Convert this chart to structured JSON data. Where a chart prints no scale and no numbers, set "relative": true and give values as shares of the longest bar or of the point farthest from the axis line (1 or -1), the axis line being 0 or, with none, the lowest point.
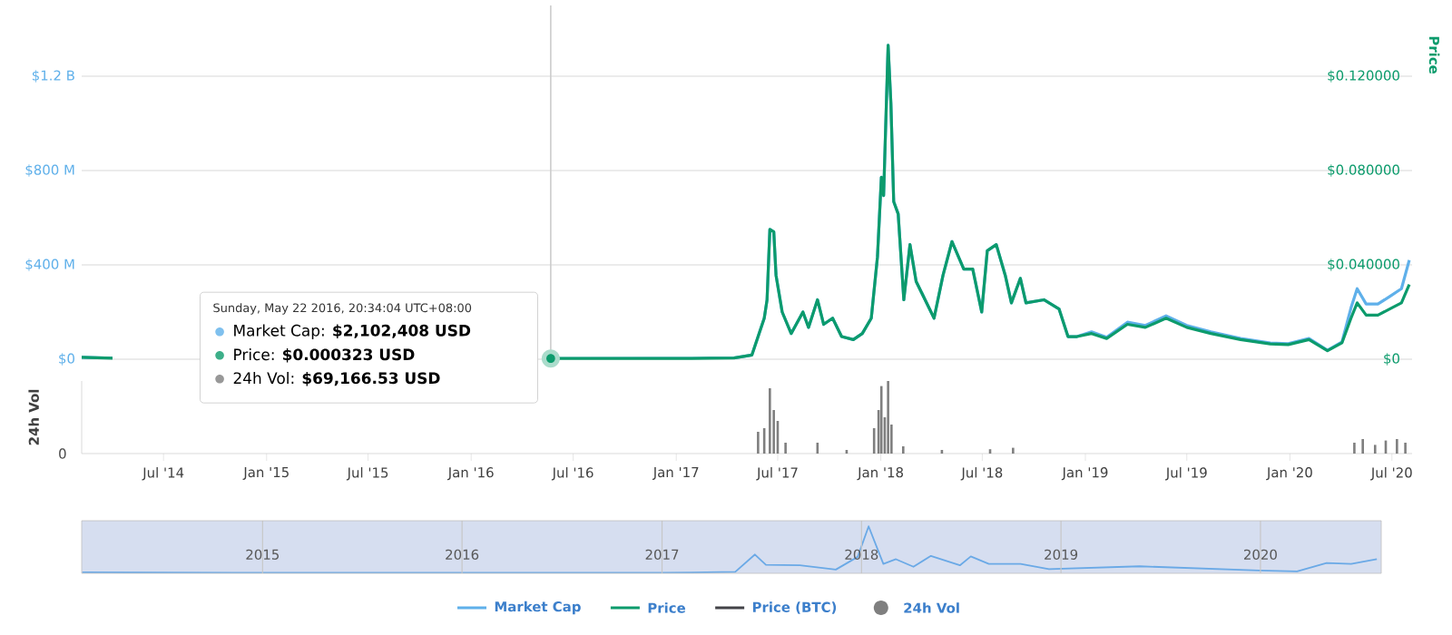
{
  "chart_data": [
    {
      "type": "line",
      "xlim": [
        "2014-02-05",
        "2020-08-06"
      ],
      "ylim": [
        0,
        1500000000
      ],
      "yticks": [
        {
          "value": 0,
          "label": "$0"
        },
        {
          "value": 400000000,
          "label": "$400 M"
        },
        {
          "value": 800000000,
          "label": "$800 M"
        },
        {
          "value": 1200000000,
          "label": "$1.2 B"
        }
      ],
      "y2lim": [
        0,
        0.15
      ],
      "y2ticks": [
        {
          "value": 0,
          "label": "$0"
        },
        {
          "value": 0.04,
          "label": "$0.040000"
        },
        {
          "value": 0.08,
          "label": "$0.080000"
        },
        {
          "value": 0.12,
          "label": "$0.120000"
        }
      ],
      "y2label": "Price",
      "grid": "y",
      "legend": "bottom",
      "tick_labels": "y",
      "x": [
        "2014-02-05",
        "2014-04-01",
        "2015-06-01",
        "2016-05-22",
        "2016-12-01",
        "2017-03-01",
        "2017-04-14",
        "2017-05-16",
        "2017-05-27",
        "2017-06-07",
        "2017-06-12",
        "2017-06-17",
        "2017-06-24",
        "2017-06-28",
        "2017-07-09",
        "2017-07-25",
        "2017-08-15",
        "2017-08-25",
        "2017-09-10",
        "2017-09-21",
        "2017-10-07",
        "2017-10-23",
        "2017-11-13",
        "2017-11-29",
        "2017-12-15",
        "2017-12-26",
        "2018-01-02",
        "2018-01-06",
        "2018-01-14",
        "2018-01-19",
        "2018-01-24",
        "2018-02-01",
        "2018-02-11",
        "2018-02-22",
        "2018-03-05",
        "2018-03-21",
        "2018-04-06",
        "2018-04-22",
        "2018-05-08",
        "2018-05-29",
        "2018-06-14",
        "2018-06-30",
        "2018-07-10",
        "2018-07-26",
        "2018-08-11",
        "2018-08-22",
        "2018-09-07",
        "2018-09-17",
        "2018-10-19",
        "2018-11-15",
        "2018-12-01",
        "2018-12-17",
        "2019-01-12",
        "2019-02-08",
        "2019-03-17",
        "2019-04-18",
        "2019-05-25",
        "2019-07-01",
        "2019-08-13",
        "2019-10-05",
        "2019-11-27",
        "2019-12-29",
        "2020-02-04",
        "2020-03-08",
        "2020-04-03",
        "2020-04-19",
        "2020-04-30",
        "2020-05-16",
        "2020-06-06",
        "2020-06-27",
        "2020-07-18",
        "2020-08-01"
      ],
      "series": [
        {
          "name": "Market Cap",
          "color": "#5fb0ea",
          "values": [
            8000000,
            4000000,
            null,
            2102408,
            3000000,
            4000000,
            5000000,
            18000000,
            96000000,
            174000000,
            252000000,
            551000000,
            540000000,
            356000000,
            200000000,
            109000000,
            200000000,
            135000000,
            252000000,
            148000000,
            174000000,
            96000000,
            83000000,
            109000000,
            174000000,
            434000000,
            772000000,
            694000000,
            1331000000,
            1084000000,
            668000000,
            616000000,
            252000000,
            486000000,
            330000000,
            252000000,
            174000000,
            356000000,
            499000000,
            382000000,
            382000000,
            200000000,
            460000000,
            486000000,
            356000000,
            239000000,
            343000000,
            239000000,
            252000000,
            213000000,
            96000000,
            96000000,
            116000000,
            93000000,
            157000000,
            143000000,
            184000000,
            143000000,
            116000000,
            88000000,
            69000000,
            66000000,
            88000000,
            38000000,
            74000000,
            218000000,
            299000000,
            234000000,
            234000000,
            266000000,
            299000000,
            420000000
          ]
        },
        {
          "name": "Price",
          "color": "#0c9b6c",
          "axis": "y2",
          "values": [
            0.0008,
            0.0004,
            null,
            0.000323,
            0.0003,
            0.0004,
            0.0005,
            0.0018,
            0.0096,
            0.0174,
            0.0252,
            0.0551,
            0.054,
            0.0356,
            0.02,
            0.0109,
            0.02,
            0.0135,
            0.0252,
            0.0148,
            0.0174,
            0.0096,
            0.0083,
            0.0109,
            0.0174,
            0.0434,
            0.0772,
            0.0694,
            0.1331,
            0.1084,
            0.0668,
            0.0616,
            0.0252,
            0.0486,
            0.033,
            0.0252,
            0.0174,
            0.0356,
            0.0499,
            0.0382,
            0.0382,
            0.02,
            0.046,
            0.0486,
            0.0356,
            0.0239,
            0.0343,
            0.0239,
            0.0252,
            0.0213,
            0.0096,
            0.0096,
            0.0109,
            0.0088,
            0.0148,
            0.0135,
            0.0174,
            0.0135,
            0.0109,
            0.0083,
            0.0065,
            0.0062,
            0.0083,
            0.0036,
            0.007,
            0.0174,
            0.0239,
            0.0187,
            0.0187,
            0.0213,
            0.0239,
            0.0317
          ]
        },
        {
          "name": "Price (BTC)",
          "color": "#434348",
          "values": [
            null,
            null,
            null,
            null,
            null,
            null,
            null,
            null,
            null,
            null,
            null,
            null,
            null,
            null,
            null,
            null,
            null,
            null,
            null,
            null,
            null,
            null,
            null,
            null,
            null,
            null,
            null,
            null,
            null,
            null,
            null,
            null,
            null,
            null,
            null,
            null,
            null,
            null,
            null,
            null,
            null,
            null,
            null,
            null,
            null,
            null,
            null,
            null,
            null,
            null,
            null,
            null,
            null,
            null,
            null,
            null,
            null,
            null,
            null,
            null,
            null,
            null,
            null,
            null,
            null,
            null,
            null,
            null,
            null,
            null,
            null,
            null
          ]
        }
      ],
      "ref_lines": [
        {
          "axis": "x",
          "value": "2016-05-22",
          "color": "#cccccc"
        }
      ],
      "annotations": [
        "Sunday, May 22 2016, 20:34:04 UTC+08:00",
        "Market Cap: **$2,102,408 USD**",
        "Price: **$0.000323 USD**",
        "24h Vol: **$69,166.53 USD**"
      ]
    },
    {
      "type": "bar",
      "relative": true,
      "ylabel": "24h Vol",
      "xlim": [
        "2014-02-05",
        "2020-08-06"
      ],
      "xticks": [
        {
          "value": "2014-07-01",
          "label": "Jul '14"
        },
        {
          "value": "2015-01-01",
          "label": "Jan '15"
        },
        {
          "value": "2015-07-01",
          "label": "Jul '15"
        },
        {
          "value": "2016-01-01",
          "label": "Jan '16"
        },
        {
          "value": "2016-07-01",
          "label": "Jul '16"
        },
        {
          "value": "2017-01-01",
          "label": "Jan '17"
        },
        {
          "value": "2017-07-01",
          "label": "Jul '17"
        },
        {
          "value": "2018-01-01",
          "label": "Jan '18"
        },
        {
          "value": "2018-07-01",
          "label": "Jul '18"
        },
        {
          "value": "2019-01-01",
          "label": "Jan '19"
        },
        {
          "value": "2019-07-01",
          "label": "Jul '19"
        },
        {
          "value": "2020-01-01",
          "label": "Jan '20"
        },
        {
          "value": "2020-07-01",
          "label": "Jul '20"
        }
      ],
      "tick_labels": "x",
      "x": [
        "2017-05-27",
        "2017-06-07",
        "2017-06-17",
        "2017-06-24",
        "2017-07-01",
        "2017-07-15",
        "2017-09-10",
        "2017-11-01",
        "2017-12-20",
        "2017-12-28",
        "2018-01-02",
        "2018-01-08",
        "2018-01-14",
        "2018-01-20",
        "2018-02-10",
        "2018-04-20",
        "2018-07-15",
        "2018-08-25",
        "2020-04-25",
        "2020-05-10",
        "2020-06-01",
        "2020-06-20",
        "2020-07-10",
        "2020-07-25"
      ],
      "series": [
        {
          "name": "24h Vol",
          "color": "#7f7f7f",
          "values": [
            0.3,
            0.35,
            0.9,
            0.6,
            0.45,
            0.15,
            0.15,
            0.05,
            0.35,
            0.6,
            0.93,
            0.5,
            1.0,
            0.4,
            0.1,
            0.05,
            0.06,
            0.08,
            0.15,
            0.2,
            0.12,
            0.18,
            0.2,
            0.15
          ]
        }
      ],
      "annotations": [
        "0"
      ]
    },
    {
      "type": "line",
      "relative": true,
      "xlim": [
        "2014-02-04",
        "2020-08-09"
      ],
      "xticks": [
        {
          "value": "2015-01-01",
          "label": "2015"
        },
        {
          "value": "2016-01-01",
          "label": "2016"
        },
        {
          "value": "2017-01-01",
          "label": "2017"
        },
        {
          "value": "2018-01-01",
          "label": "2018"
        },
        {
          "value": "2019-01-01",
          "label": "2019"
        },
        {
          "value": "2020-01-01",
          "label": "2020"
        }
      ],
      "grid": "x",
      "tick_labels": "x",
      "x": [
        "2014-02-05",
        "2015-01-01",
        "2016-01-01",
        "2017-01-01",
        "2017-05-15",
        "2017-06-20",
        "2017-07-10",
        "2017-09-10",
        "2017-11-15",
        "2017-12-25",
        "2018-01-14",
        "2018-02-10",
        "2018-03-05",
        "2018-04-06",
        "2018-05-08",
        "2018-06-30",
        "2018-07-20",
        "2018-08-22",
        "2018-10-19",
        "2018-12-10",
        "2019-05-25",
        "2019-12-29",
        "2020-03-08",
        "2020-05-01",
        "2020-06-15",
        "2020-08-01"
      ],
      "series": [
        {
          "color": "#6aa9e6",
          "values": [
            0.02,
            0.01,
            0.01,
            0.01,
            0.03,
            0.4,
            0.18,
            0.17,
            0.08,
            0.35,
            1.0,
            0.2,
            0.3,
            0.14,
            0.37,
            0.17,
            0.36,
            0.2,
            0.2,
            0.09,
            0.15,
            0.06,
            0.04,
            0.22,
            0.2,
            0.3
          ]
        }
      ]
    }
  ]
}
